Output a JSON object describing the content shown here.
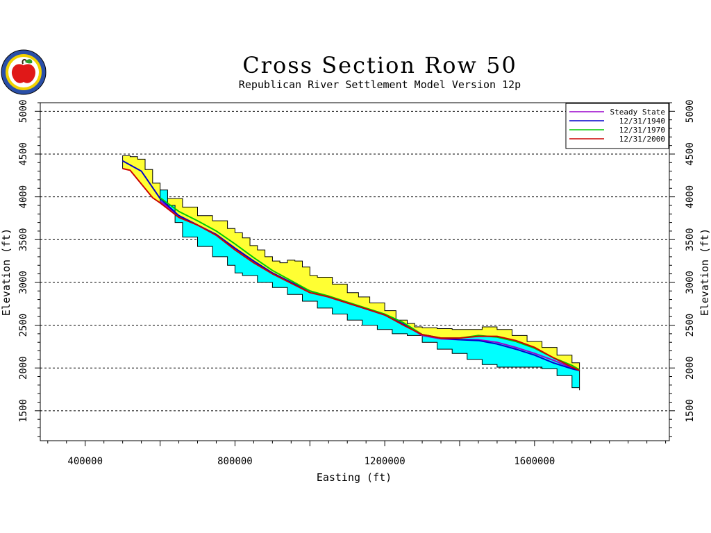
{
  "logo": {
    "icon": "apple-seal-icon"
  },
  "chart_data": {
    "type": "area",
    "title": "Cross Section Row 50",
    "subtitle": "Republican River Settlement Model Version 12p",
    "xlabel": "Easting (ft)",
    "ylabel": "Elevation (ft)",
    "xlim": [
      280000,
      1960000
    ],
    "ylim": [
      1150000,
      5100
    ],
    "x_ticks": [
      400000,
      800000,
      1200000,
      1600000
    ],
    "y_ticks": [
      1500,
      2000,
      2500,
      3000,
      3500,
      4000,
      4500,
      5000
    ],
    "grid": "horizontal-dashed",
    "legend_position": "top-right",
    "colors": {
      "land_surface_fill": "#ffff33",
      "aquifer_fill": "#00ffff",
      "outline": "#000000"
    },
    "land_surface": {
      "x": [
        500000,
        520000,
        540000,
        560000,
        580000,
        600000,
        620000,
        660000,
        700000,
        740000,
        780000,
        800000,
        820000,
        840000,
        860000,
        880000,
        900000,
        920000,
        940000,
        960000,
        980000,
        1000000,
        1020000,
        1060000,
        1100000,
        1130000,
        1160000,
        1200000,
        1230000,
        1260000,
        1280000,
        1300000,
        1340000,
        1380000,
        1420000,
        1460000,
        1500000,
        1540000,
        1580000,
        1620000,
        1660000,
        1700000,
        1720000
      ],
      "y": [
        4480,
        4470,
        4440,
        4320,
        4160,
        4060,
        3980,
        3880,
        3780,
        3720,
        3630,
        3580,
        3520,
        3430,
        3380,
        3300,
        3250,
        3230,
        3260,
        3250,
        3180,
        3080,
        3060,
        2980,
        2880,
        2830,
        2760,
        2670,
        2560,
        2520,
        2480,
        2470,
        2460,
        2450,
        2450,
        2480,
        2450,
        2380,
        2310,
        2240,
        2150,
        2060,
        2030
      ]
    },
    "aquifer_bottom": {
      "x": [
        600000,
        620000,
        640000,
        660000,
        700000,
        740000,
        780000,
        800000,
        820000,
        860000,
        900000,
        940000,
        980000,
        1020000,
        1060000,
        1100000,
        1140000,
        1180000,
        1220000,
        1260000,
        1300000,
        1340000,
        1380000,
        1420000,
        1460000,
        1500000,
        1540000,
        1580000,
        1620000,
        1660000,
        1700000,
        1720000
      ],
      "y": [
        4080,
        3900,
        3700,
        3530,
        3420,
        3300,
        3200,
        3110,
        3080,
        3000,
        2940,
        2860,
        2780,
        2700,
        2630,
        2560,
        2500,
        2450,
        2400,
        2380,
        2300,
        2220,
        2170,
        2100,
        2040,
        2010,
        2010,
        2010,
        1990,
        1910,
        1770,
        1740
      ]
    },
    "series": [
      {
        "name": "Steady State",
        "color": "#9900cc",
        "x": [
          600000,
          650000,
          700000,
          750000,
          800000,
          850000,
          900000,
          950000,
          1000000,
          1050000,
          1100000,
          1150000,
          1200000,
          1250000,
          1300000,
          1350000,
          1400000,
          1450000,
          1500000,
          1550000,
          1600000,
          1650000,
          1700000,
          1720000
        ],
        "y": [
          3950,
          3780,
          3670,
          3560,
          3400,
          3250,
          3110,
          3000,
          2900,
          2830,
          2760,
          2690,
          2620,
          2510,
          2380,
          2340,
          2330,
          2330,
          2300,
          2240,
          2170,
          2090,
          2000,
          1980
        ]
      },
      {
        "name": "12/31/1940",
        "color": "#0000cc",
        "x": [
          500000,
          550000,
          600000,
          650000,
          700000,
          750000,
          800000,
          850000,
          900000,
          950000,
          1000000,
          1050000,
          1100000,
          1150000,
          1200000,
          1250000,
          1300000,
          1350000,
          1400000,
          1450000,
          1500000,
          1550000,
          1600000,
          1650000,
          1700000,
          1720000
        ],
        "y": [
          4420,
          4300,
          3980,
          3780,
          3670,
          3560,
          3400,
          3250,
          3110,
          3000,
          2900,
          2830,
          2760,
          2690,
          2620,
          2510,
          2390,
          2350,
          2330,
          2320,
          2280,
          2220,
          2150,
          2060,
          1990,
          1970
        ]
      },
      {
        "name": "12/31/1970",
        "color": "#00cc00",
        "x": [
          600000,
          650000,
          700000,
          750000,
          800000,
          850000,
          900000,
          950000,
          1000000,
          1050000,
          1100000,
          1150000,
          1200000,
          1250000,
          1300000,
          1350000,
          1400000,
          1450000,
          1500000,
          1550000,
          1600000,
          1650000,
          1700000,
          1720000
        ],
        "y": [
          3990,
          3830,
          3720,
          3600,
          3450,
          3290,
          3140,
          3020,
          2900,
          2840,
          2770,
          2700,
          2630,
          2530,
          2390,
          2350,
          2350,
          2380,
          2360,
          2310,
          2230,
          2120,
          2030,
          1980
        ]
      },
      {
        "name": "12/31/2000",
        "color": "#cc0000",
        "x": [
          500000,
          520000,
          550000,
          580000,
          600000,
          650000,
          700000,
          750000,
          800000,
          850000,
          900000,
          950000,
          1000000,
          1050000,
          1100000,
          1150000,
          1200000,
          1250000,
          1300000,
          1350000,
          1400000,
          1450000,
          1500000,
          1550000,
          1600000,
          1650000,
          1700000,
          1720000
        ],
        "y": [
          4330,
          4310,
          4150,
          3990,
          3930,
          3760,
          3670,
          3550,
          3380,
          3230,
          3100,
          2990,
          2880,
          2830,
          2760,
          2690,
          2620,
          2500,
          2390,
          2350,
          2350,
          2370,
          2370,
          2320,
          2240,
          2120,
          2010,
          1970
        ]
      }
    ]
  }
}
